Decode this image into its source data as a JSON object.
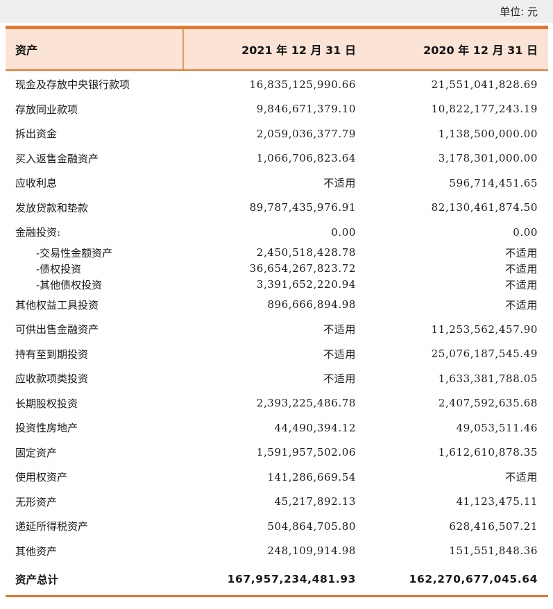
{
  "unit_label": "单位: 元",
  "colors": {
    "accent_orange": "#E0792F",
    "header_divider_orange": "#E8975F",
    "header_bg_peach": "#FBE3D5",
    "unit_bar_bg_gray": "#EFEFF0",
    "text": "#1A1A1A"
  },
  "table": {
    "columns": [
      "资产",
      "2021 年 12 月 31 日",
      "2020 年 12 月 31 日"
    ],
    "not_applicable_text": "不适用",
    "rows": [
      {
        "type": "normal",
        "label": "现金及存放中央银行款项",
        "y2021": "16,835,125,990.66",
        "y2020": "21,551,041,828.69"
      },
      {
        "type": "normal",
        "label": "存放同业款项",
        "y2021": "9,846,671,379.10",
        "y2020": "10,822,177,243.19"
      },
      {
        "type": "normal",
        "label": "拆出资金",
        "y2021": "2,059,036,377.79",
        "y2020": "1,138,500,000.00"
      },
      {
        "type": "normal",
        "label": "买入返售金融资产",
        "y2021": "1,066,706,823.64",
        "y2020": "3,178,301,000.00"
      },
      {
        "type": "normal",
        "label": "应收利息",
        "y2021": "不适用",
        "y2020": "596,714,451.65"
      },
      {
        "type": "normal",
        "label": "发放贷款和垫款",
        "y2021": "89,787,435,976.91",
        "y2020": "82,130,461,874.50"
      },
      {
        "type": "normal",
        "label": "金融投资:",
        "y2021": "0.00",
        "y2020": "0.00"
      },
      {
        "type": "sub",
        "label": "-交易性金额资产",
        "y2021": "2,450,518,428.78",
        "y2020": "不适用"
      },
      {
        "type": "sub",
        "label": "-债权投资",
        "y2021": "36,654,267,823.72",
        "y2020": "不适用"
      },
      {
        "type": "sub",
        "label": "-其他债权投资",
        "y2021": "3,391,652,220.94",
        "y2020": "不适用"
      },
      {
        "type": "normal",
        "label": "其他权益工具投资",
        "y2021": "896,666,894.98",
        "y2020": "不适用"
      },
      {
        "type": "normal",
        "label": "可供出售金融资产",
        "y2021": "不适用",
        "y2020": "11,253,562,457.90"
      },
      {
        "type": "normal",
        "label": "持有至到期投资",
        "y2021": "不适用",
        "y2020": "25,076,187,545.49"
      },
      {
        "type": "normal",
        "label": "应收款项类投资",
        "y2021": "不适用",
        "y2020": "1,633,381,788.05"
      },
      {
        "type": "normal",
        "label": "长期股权投资",
        "y2021": "2,393,225,486.78",
        "y2020": "2,407,592,635.68"
      },
      {
        "type": "normal",
        "label": "投资性房地产",
        "y2021": "44,490,394.12",
        "y2020": "49,053,511.46"
      },
      {
        "type": "normal",
        "label": "固定资产",
        "y2021": "1,591,957,502.06",
        "y2020": "1,612,610,878.35"
      },
      {
        "type": "normal",
        "label": "使用权资产",
        "y2021": "141,286,669.54",
        "y2020": "不适用"
      },
      {
        "type": "normal",
        "label": "无形资产",
        "y2021": "45,217,892.13",
        "y2020": "41,123,475.11"
      },
      {
        "type": "normal",
        "label": "递延所得税资产",
        "y2021": "504,864,705.80",
        "y2020": "628,416,507.21"
      },
      {
        "type": "normal",
        "label": "其他资产",
        "y2021": "248,109,914.98",
        "y2020": "151,551,848.36"
      },
      {
        "type": "total",
        "label": "资产总计",
        "y2021": "167,957,234,481.93",
        "y2020": "162,270,677,045.64"
      }
    ]
  }
}
